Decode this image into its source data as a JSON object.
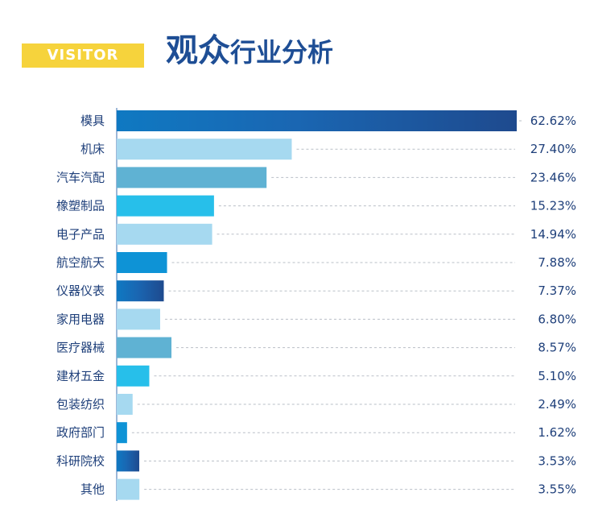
{
  "header": {
    "badge": "VISITOR",
    "title_big": "观众",
    "title_small": "行业分析"
  },
  "colors": {
    "dark_blue": "#1e4e95",
    "light_blue": "#a6d9f0",
    "teal_blue": "#5fb2d3",
    "cyan": "#27bfea",
    "bright_blue": "#0e93d6",
    "yellow": "#f6d33c"
  },
  "chart_data": {
    "type": "bar",
    "orientation": "horizontal",
    "title": "观众行业分析",
    "xlabel": "",
    "ylabel": "",
    "xlim": [
      0,
      62.62
    ],
    "grid": false,
    "categories": [
      "模具",
      "机床",
      "汽车汽配",
      "橡塑制品",
      "电子产品",
      "航空航天",
      "仪器仪表",
      "家用电器",
      "医疗器械",
      "建材五金",
      "包装纺织",
      "政府部门",
      "科研院校",
      "其他"
    ],
    "values": [
      62.62,
      27.4,
      23.46,
      15.23,
      14.94,
      7.88,
      7.37,
      6.8,
      8.57,
      5.1,
      2.49,
      1.62,
      3.53,
      3.55
    ],
    "value_labels": [
      "62.62%",
      "27.40%",
      "23.46%",
      "15.23%",
      "14.94%",
      "7.88%",
      "7.37%",
      "6.80%",
      "8.57%",
      "5.10%",
      "2.49%",
      "1.62%",
      "3.53%",
      "3.55%"
    ],
    "bar_styles": [
      "gradient-dark",
      "light",
      "teal",
      "cyan",
      "light",
      "bright",
      "gradient-dark",
      "light",
      "teal",
      "cyan",
      "light",
      "bright",
      "gradient-dark",
      "light"
    ]
  }
}
